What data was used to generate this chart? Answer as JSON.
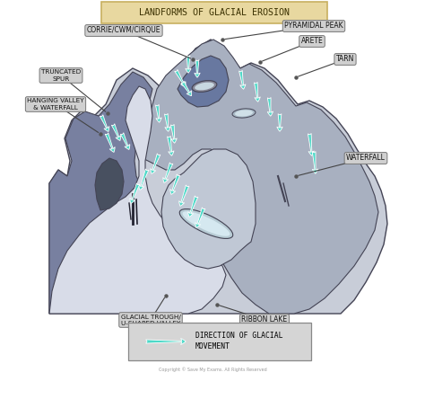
{
  "title": "LANDFORMS OF GLACIAL EROSION",
  "title_bg": "#e8d8a0",
  "title_border": "#c8b060",
  "bg_color": "#ffffff",
  "label_bg": "#d0d0d0",
  "label_border": "#777777",
  "cyan": "#4dd9c8",
  "dark_outline": "#444455",
  "legend_text1": "DIRECTION OF GLACIAL",
  "legend_text2": "MOVEMENT",
  "copyright": "Copyright © Save My Exams. All Rights Reserved"
}
